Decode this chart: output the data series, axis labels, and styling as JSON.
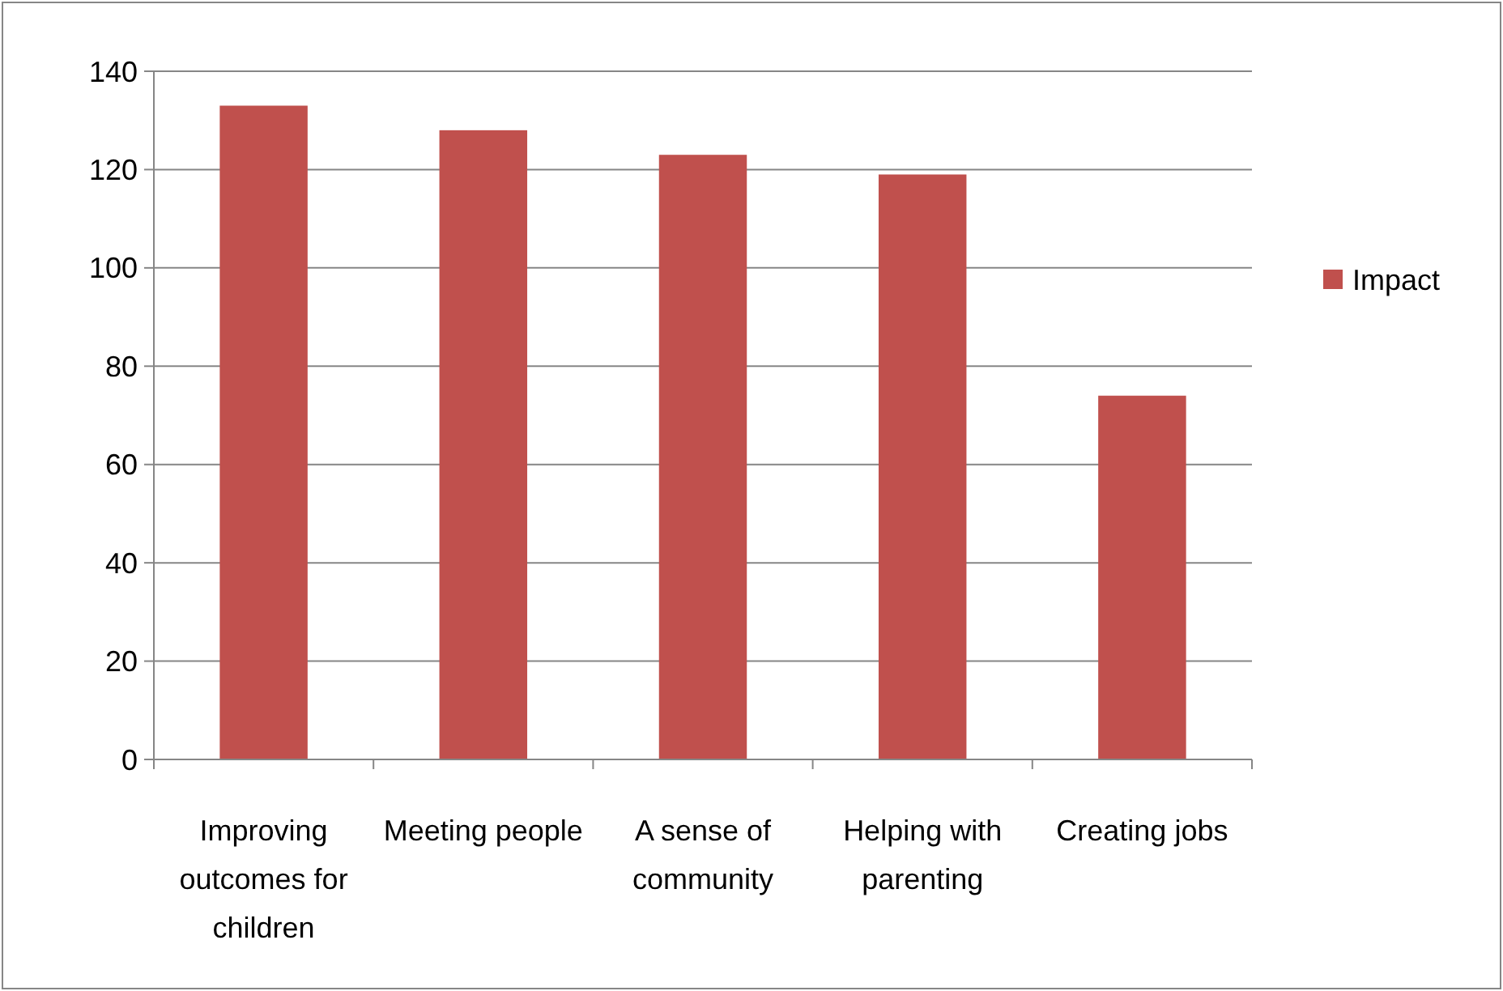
{
  "chart_data": {
    "type": "bar",
    "categories": [
      "Improving outcomes for children",
      "Meeting people",
      "A sense of community",
      "Helping with parenting",
      "Creating jobs"
    ],
    "series": [
      {
        "name": "Impact",
        "color": "#c0504d",
        "values": [
          133,
          128,
          123,
          119,
          74
        ]
      }
    ],
    "ylim": [
      0,
      140
    ],
    "yticks": [
      0,
      20,
      40,
      60,
      80,
      100,
      120,
      140
    ],
    "grid": "y",
    "legend": "right"
  }
}
